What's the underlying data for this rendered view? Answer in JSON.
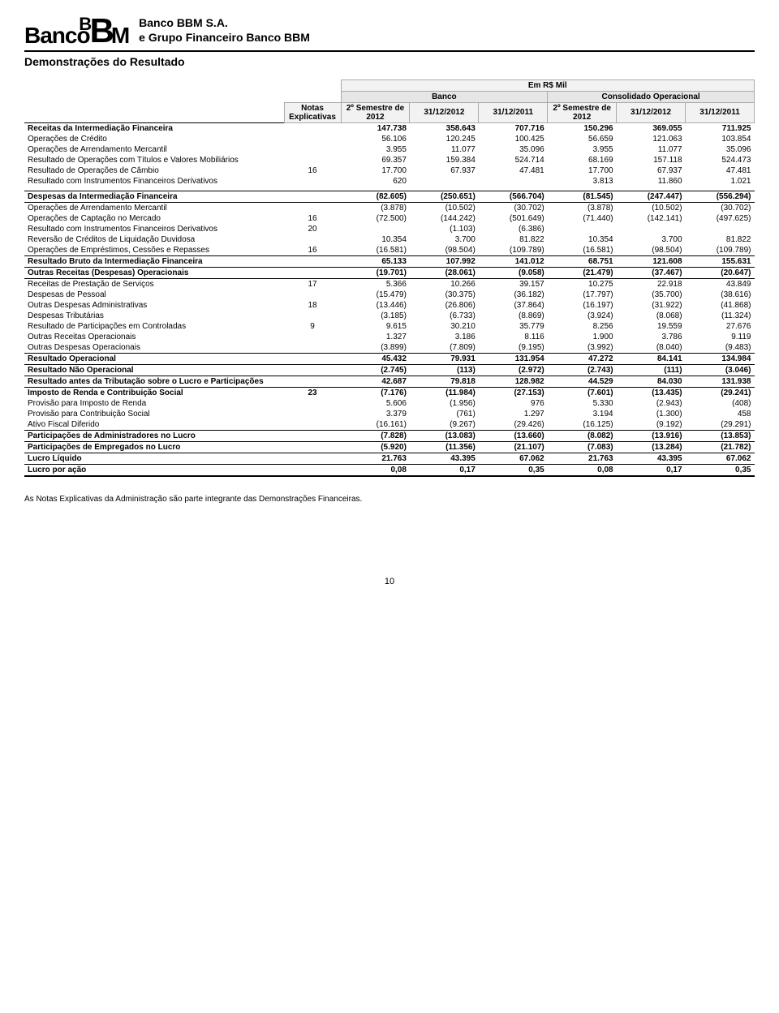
{
  "company": {
    "logo_text": "BancoBM",
    "name": "Banco BBM S.A.",
    "group": "e Grupo Financeiro Banco BBM"
  },
  "report_title": "Demonstrações do Resultado",
  "header": {
    "unit": "Em R$ Mil",
    "banco_group": "Banco",
    "consol_group": "Consolidado Operacional",
    "notas": "Notas Explicativas",
    "sem_2012": "2º Semestre de 2012",
    "d_2012": "31/12/2012",
    "d_2011": "31/12/2011"
  },
  "rows": [
    {
      "label": "Receitas da Intermediação Financeira",
      "notes": "",
      "v": [
        "147.738",
        "358.643",
        "707.716",
        "150.296",
        "369.055",
        "711.925"
      ],
      "bold": true,
      "line_above": true,
      "line_below": false
    },
    {
      "label": "Operações de Crédito",
      "notes": "",
      "v": [
        "56.106",
        "120.245",
        "100.425",
        "56.659",
        "121.063",
        "103.854"
      ],
      "indent": true
    },
    {
      "label": "Operações de Arrendamento Mercantil",
      "notes": "",
      "v": [
        "3.955",
        "11.077",
        "35.096",
        "3.955",
        "11.077",
        "35.096"
      ],
      "indent": true
    },
    {
      "label": "Resultado de Operações com Títulos e Valores Mobiliários",
      "notes": "",
      "v": [
        "69.357",
        "159.384",
        "524.714",
        "68.169",
        "157.118",
        "524.473"
      ],
      "indent": true
    },
    {
      "label": "Resultado de Operações de Câmbio",
      "notes": "16",
      "v": [
        "17.700",
        "67.937",
        "47.481",
        "17.700",
        "67.937",
        "47.481"
      ],
      "indent": true
    },
    {
      "label": "Resultado com Instrumentos Financeiros Derivativos",
      "notes": "",
      "v": [
        "620",
        "",
        "",
        "3.813",
        "11.860",
        "1.021"
      ],
      "indent": true
    },
    {
      "spacer": true
    },
    {
      "label": "Despesas da Intermediação Financeira",
      "notes": "",
      "v": [
        "(82.605)",
        "(250.651)",
        "(566.704)",
        "(81.545)",
        "(247.447)",
        "(556.294)"
      ],
      "bold": true,
      "line_above": true,
      "line_below": true
    },
    {
      "label": "Operações de Arrendamento Mercantil",
      "notes": "",
      "v": [
        "(3.878)",
        "(10.502)",
        "(30.702)",
        "(3.878)",
        "(10.502)",
        "(30.702)"
      ],
      "indent": true
    },
    {
      "label": "Operações de Captação no Mercado",
      "notes": "16",
      "v": [
        "(72.500)",
        "(144.242)",
        "(501.649)",
        "(71.440)",
        "(142.141)",
        "(497.625)"
      ],
      "indent": true
    },
    {
      "label": "Resultado com Instrumentos Financeiros Derivativos",
      "notes": "20",
      "v": [
        "",
        "(1.103)",
        "(6.386)",
        "",
        "",
        ""
      ],
      "indent": true
    },
    {
      "label": "Reversão de Créditos de Liquidação Duvidosa",
      "notes": "",
      "v": [
        "10.354",
        "3.700",
        "81.822",
        "10.354",
        "3.700",
        "81.822"
      ],
      "indent": true
    },
    {
      "label": "Operações de Empréstimos, Cessões e Repasses",
      "notes": "16",
      "v": [
        "(16.581)",
        "(98.504)",
        "(109.789)",
        "(16.581)",
        "(98.504)",
        "(109.789)"
      ],
      "indent": true
    },
    {
      "label": "Resultado Bruto da Intermediação Financeira",
      "notes": "",
      "v": [
        "65.133",
        "107.992",
        "141.012",
        "68.751",
        "121.608",
        "155.631"
      ],
      "bold": true,
      "line_above": true,
      "line_below": true
    },
    {
      "label": "Outras Receitas (Despesas) Operacionais",
      "notes": "",
      "v": [
        "(19.701)",
        "(28.061)",
        "(9.058)",
        "(21.479)",
        "(37.467)",
        "(20.647)"
      ],
      "bold": true,
      "line_below": true
    },
    {
      "label": "Receitas de Prestação de Serviços",
      "notes": "17",
      "v": [
        "5.366",
        "10.266",
        "39.157",
        "10.275",
        "22.918",
        "43.849"
      ],
      "indent": true
    },
    {
      "label": "Despesas de Pessoal",
      "notes": "",
      "v": [
        "(15.479)",
        "(30.375)",
        "(36.182)",
        "(17.797)",
        "(35.700)",
        "(38.616)"
      ],
      "indent": true
    },
    {
      "label": "Outras Despesas Administrativas",
      "notes": "18",
      "v": [
        "(13.446)",
        "(26.806)",
        "(37.864)",
        "(16.197)",
        "(31.922)",
        "(41.868)"
      ],
      "indent": true
    },
    {
      "label": "Despesas Tributárias",
      "notes": "",
      "v": [
        "(3.185)",
        "(6.733)",
        "(8.869)",
        "(3.924)",
        "(8.068)",
        "(11.324)"
      ],
      "indent": true
    },
    {
      "label": "Resultado de Participações em Controladas",
      "notes": "9",
      "v": [
        "9.615",
        "30.210",
        "35.779",
        "8.256",
        "19.559",
        "27.676"
      ],
      "indent": true
    },
    {
      "label": "Outras Receitas Operacionais",
      "notes": "",
      "v": [
        "1.327",
        "3.186",
        "8.116",
        "1.900",
        "3.786",
        "9.119"
      ],
      "indent": true
    },
    {
      "label": "Outras Despesas Operacionais",
      "notes": "",
      "v": [
        "(3.899)",
        "(7.809)",
        "(9.195)",
        "(3.992)",
        "(8.040)",
        "(9.483)"
      ],
      "indent": true
    },
    {
      "label": "Resultado Operacional",
      "notes": "",
      "v": [
        "45.432",
        "79.931",
        "131.954",
        "47.272",
        "84.141",
        "134.984"
      ],
      "bold": true,
      "line_above": true,
      "line_below": true
    },
    {
      "label": "Resultado Não Operacional",
      "notes": "",
      "v": [
        "(2.745)",
        "(113)",
        "(2.972)",
        "(2.743)",
        "(111)",
        "(3.046)"
      ],
      "bold": true,
      "line_below": true
    },
    {
      "label": "Resultado antes da Tributação sobre o Lucro e Participações",
      "notes": "",
      "v": [
        "42.687",
        "79.818",
        "128.982",
        "44.529",
        "84.030",
        "131.938"
      ],
      "bold": true,
      "line_below": true
    },
    {
      "label": "Imposto de Renda e Contribuição Social",
      "notes": "23",
      "v": [
        "(7.176)",
        "(11.984)",
        "(27.153)",
        "(7.601)",
        "(13.435)",
        "(29.241)"
      ],
      "bold": true
    },
    {
      "label": "Provisão para Imposto de Renda",
      "notes": "",
      "v": [
        "5.606",
        "(1.956)",
        "976",
        "5.330",
        "(2.943)",
        "(408)"
      ],
      "indent": true
    },
    {
      "label": "Provisão para Contribuição Social",
      "notes": "",
      "v": [
        "3.379",
        "(761)",
        "1.297",
        "3.194",
        "(1.300)",
        "458"
      ],
      "indent": true
    },
    {
      "label": "Ativo Fiscal Diferido",
      "notes": "",
      "v": [
        "(16.161)",
        "(9.267)",
        "(29.426)",
        "(16.125)",
        "(9.192)",
        "(29.291)"
      ],
      "indent": true
    },
    {
      "label": "Participações de Administradores no Lucro",
      "notes": "",
      "v": [
        "(7.828)",
        "(13.083)",
        "(13.660)",
        "(8.082)",
        "(13.916)",
        "(13.853)"
      ],
      "bold": true,
      "line_above": true,
      "line_below": true
    },
    {
      "label": "Participações de Empregados no Lucro",
      "notes": "",
      "v": [
        "(5.920)",
        "(11.356)",
        "(21.107)",
        "(7.083)",
        "(13.284)",
        "(21.782)"
      ],
      "bold": true,
      "line_below": true
    },
    {
      "label": "Lucro Líquido",
      "notes": "",
      "v": [
        "21.763",
        "43.395",
        "67.062",
        "21.763",
        "43.395",
        "67.062"
      ],
      "bold": true,
      "line_below": true
    },
    {
      "label": "Lucro por ação",
      "notes": "",
      "v": [
        "0,08",
        "0,17",
        "0,35",
        "0,08",
        "0,17",
        "0,35"
      ],
      "bold": true,
      "thick_line_below": true
    }
  ],
  "footnote": "As Notas Explicativas da Administração são parte integrante das Demonstrações Financeiras.",
  "page_number": "10"
}
